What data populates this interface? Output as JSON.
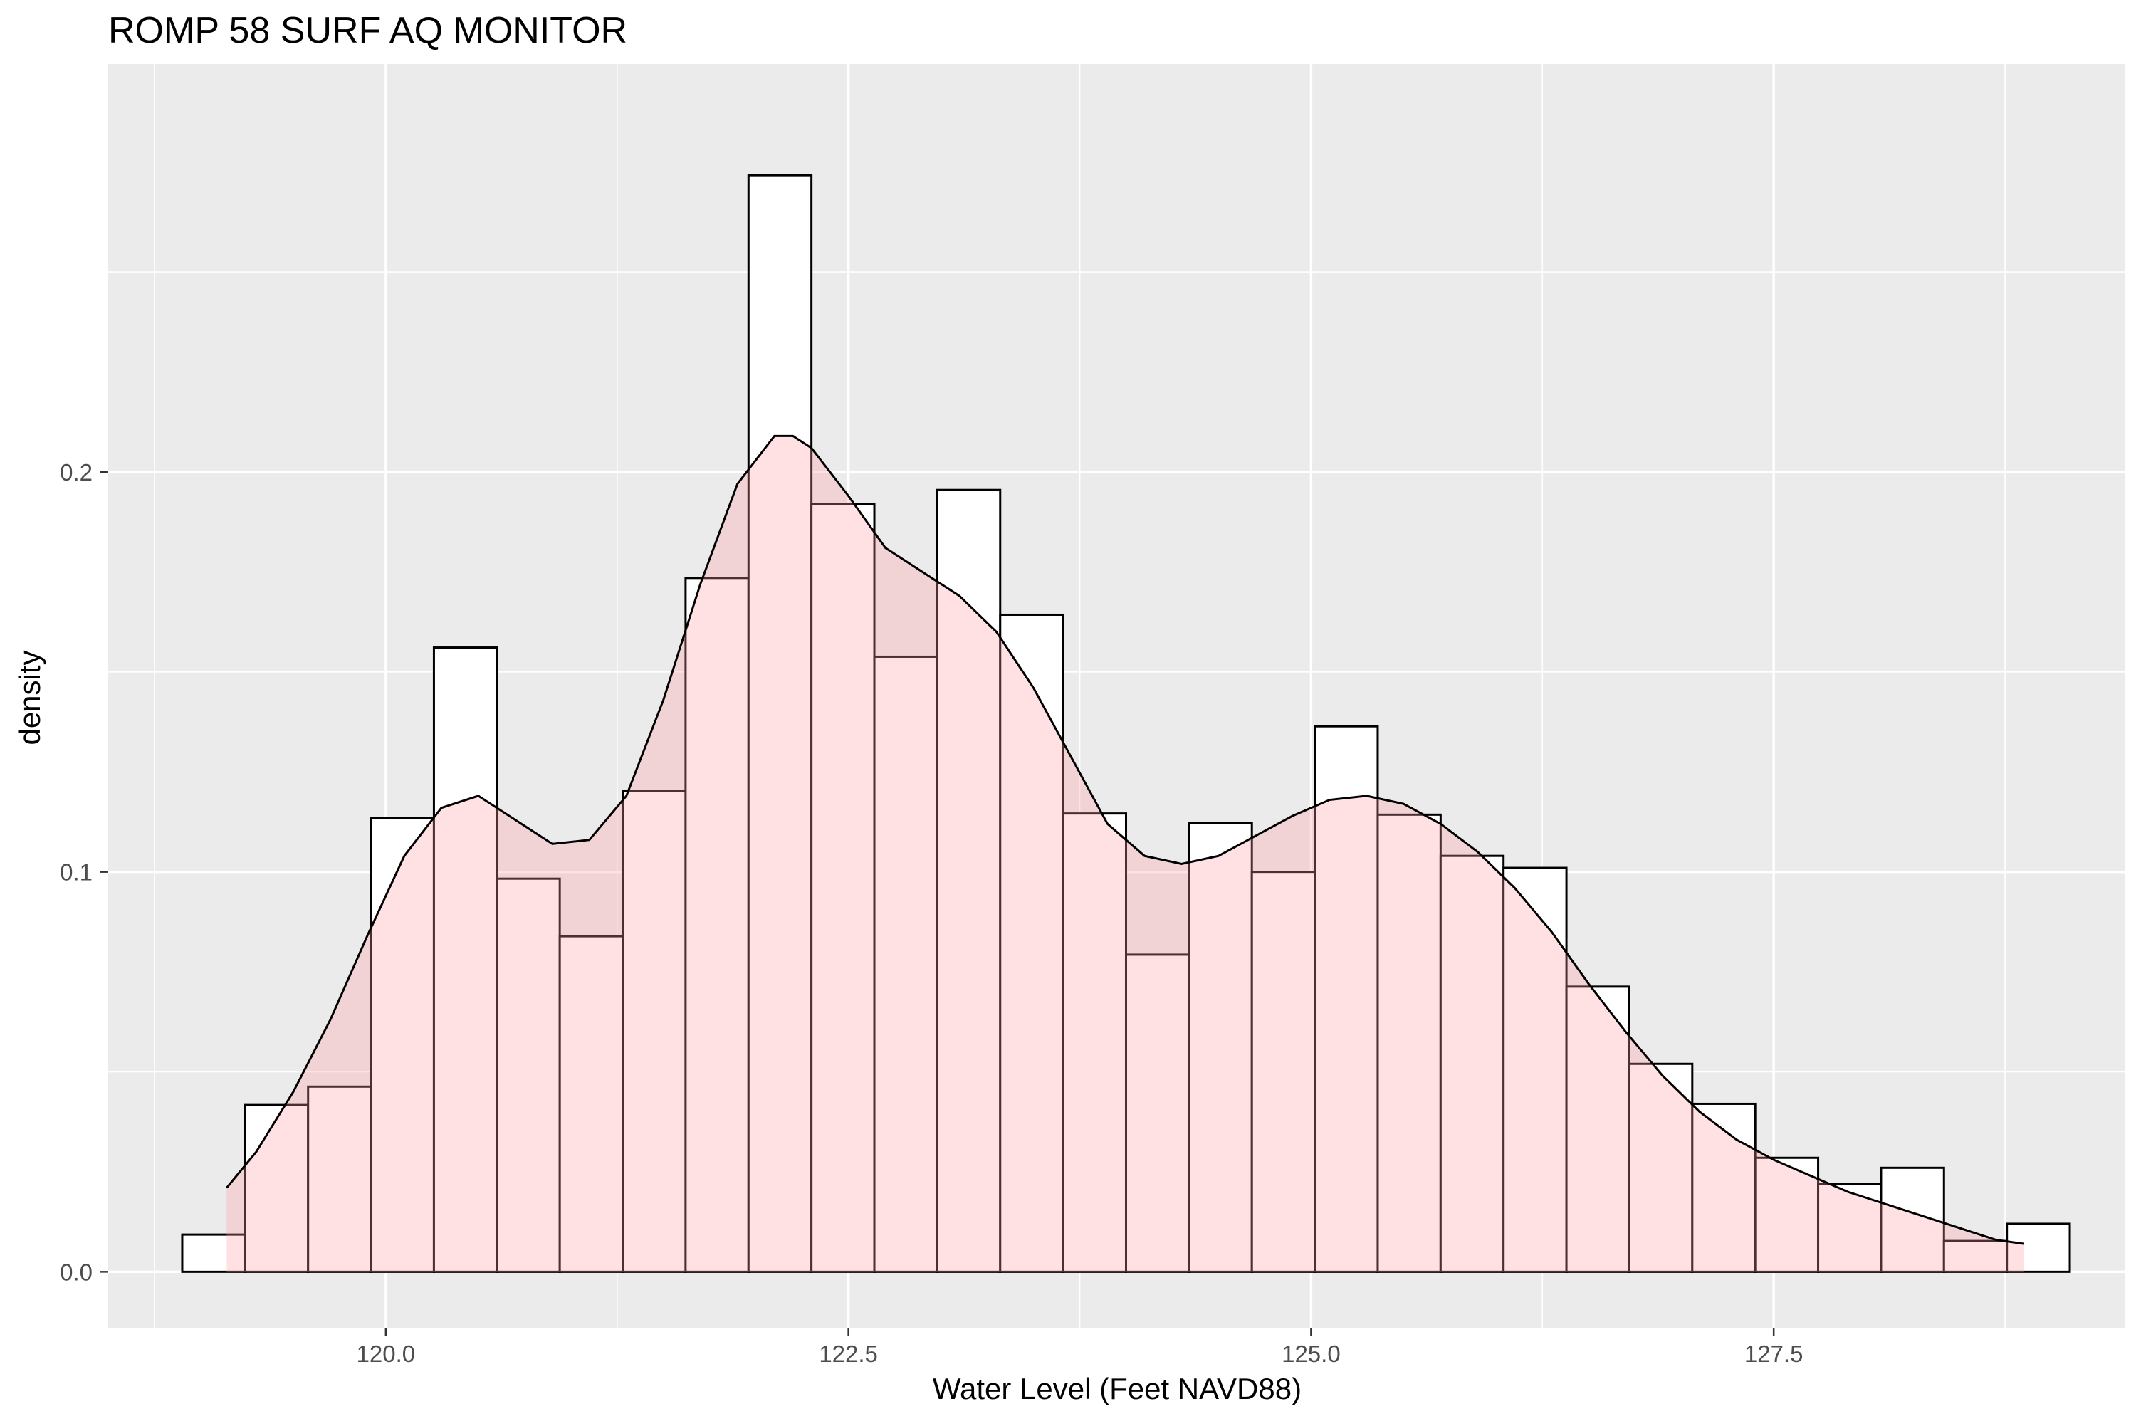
{
  "chart_data": {
    "type": "histogram",
    "title": "ROMP 58 SURF AQ MONITOR",
    "xlabel": "Water Level (Feet NAVD88)",
    "ylabel": "density",
    "xlim": [
      118.5,
      129.4
    ],
    "ylim": [
      -0.014,
      0.302
    ],
    "x_ticks": [
      120.0,
      122.5,
      125.0,
      127.5
    ],
    "x_tick_labels": [
      "120.0",
      "122.5",
      "125.0",
      "127.5"
    ],
    "y_ticks": [
      0.0,
      0.1,
      0.2
    ],
    "y_tick_labels": [
      "0.0",
      "0.1",
      "0.2"
    ],
    "grid": true,
    "colors": {
      "panel_background": "#EBEBEB",
      "grid": "#FFFFFF",
      "bar_fill": "#FFFFFF",
      "bar_outline": "#000000",
      "density_fill": "#FF9AA6",
      "density_fill_opacity": 0.3,
      "density_line": "#000000"
    },
    "bins": {
      "edges": [
        118.9,
        119.24,
        119.58,
        119.92,
        120.26,
        120.6,
        120.94,
        121.28,
        121.62,
        121.96,
        122.3,
        122.64,
        122.98,
        123.32,
        123.66,
        124.0,
        124.34,
        124.68,
        125.02,
        125.36,
        125.7,
        126.04,
        126.38,
        126.72,
        127.06,
        127.4,
        127.74,
        128.08,
        128.42,
        128.76,
        129.1
      ],
      "values": [
        0.0093,
        0.0417,
        0.0463,
        0.1134,
        0.1561,
        0.0983,
        0.0839,
        0.1202,
        0.1735,
        0.2742,
        0.192,
        0.1538,
        0.1955,
        0.1643,
        0.1146,
        0.0793,
        0.1122,
        0.1,
        0.1364,
        0.1143,
        0.104,
        0.101,
        0.0713,
        0.052,
        0.042,
        0.0285,
        0.022,
        0.026,
        0.0077,
        0.012
      ]
    },
    "density": {
      "x": [
        119.14,
        119.3,
        119.5,
        119.7,
        119.9,
        120.1,
        120.3,
        120.5,
        120.7,
        120.9,
        121.1,
        121.3,
        121.5,
        121.7,
        121.9,
        122.1,
        122.2,
        122.3,
        122.5,
        122.7,
        122.9,
        123.1,
        123.3,
        123.5,
        123.7,
        123.9,
        124.1,
        124.3,
        124.5,
        124.7,
        124.9,
        125.1,
        125.3,
        125.5,
        125.7,
        125.9,
        126.1,
        126.3,
        126.5,
        126.7,
        126.9,
        127.1,
        127.3,
        127.5,
        127.7,
        127.9,
        128.1,
        128.3,
        128.5,
        128.7,
        128.85
      ],
      "y": [
        0.021,
        0.03,
        0.045,
        0.063,
        0.084,
        0.104,
        0.116,
        0.119,
        0.113,
        0.107,
        0.108,
        0.119,
        0.143,
        0.172,
        0.197,
        0.209,
        0.209,
        0.206,
        0.194,
        0.181,
        0.175,
        0.169,
        0.16,
        0.146,
        0.129,
        0.112,
        0.104,
        0.102,
        0.104,
        0.109,
        0.114,
        0.118,
        0.119,
        0.117,
        0.112,
        0.105,
        0.096,
        0.085,
        0.072,
        0.06,
        0.049,
        0.04,
        0.033,
        0.028,
        0.024,
        0.02,
        0.017,
        0.014,
        0.011,
        0.008,
        0.007
      ]
    }
  }
}
